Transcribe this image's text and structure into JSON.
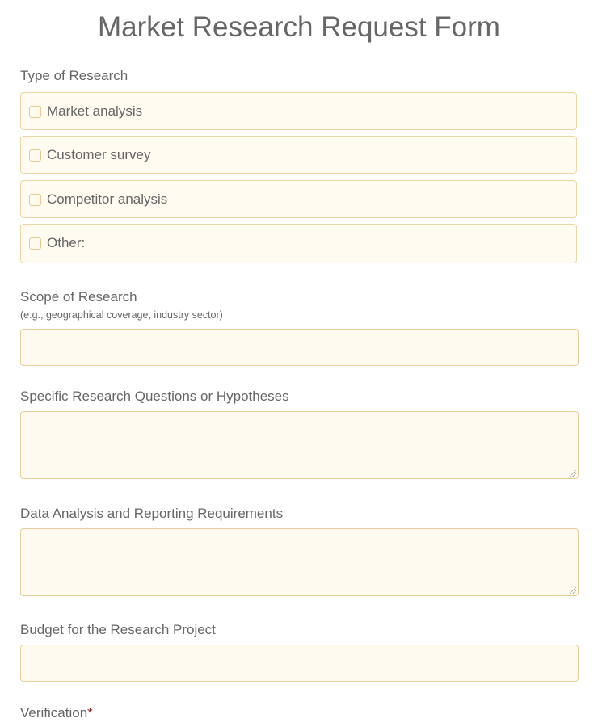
{
  "title": "Market Research Request Form",
  "type_of_research": {
    "label": "Type of Research",
    "options": [
      {
        "label": "Market analysis",
        "checked": false
      },
      {
        "label": "Customer survey",
        "checked": false
      },
      {
        "label": "Competitor analysis",
        "checked": false
      },
      {
        "label": "Other:",
        "checked": false
      }
    ]
  },
  "scope": {
    "label": "Scope of Research",
    "hint": "(e.g., geographical coverage, industry sector)",
    "value": ""
  },
  "questions": {
    "label": "Specific Research Questions or Hypotheses",
    "value": ""
  },
  "reporting": {
    "label": "Data Analysis and Reporting Requirements",
    "value": ""
  },
  "budget": {
    "label": "Budget for the Research Project",
    "value": ""
  },
  "verification": {
    "label": "Verification",
    "required_mark": "*"
  },
  "colors": {
    "field_bg": "#fffaf0",
    "field_border": "#e5cf98",
    "text": "#666666",
    "required": "#8b1a1a"
  }
}
